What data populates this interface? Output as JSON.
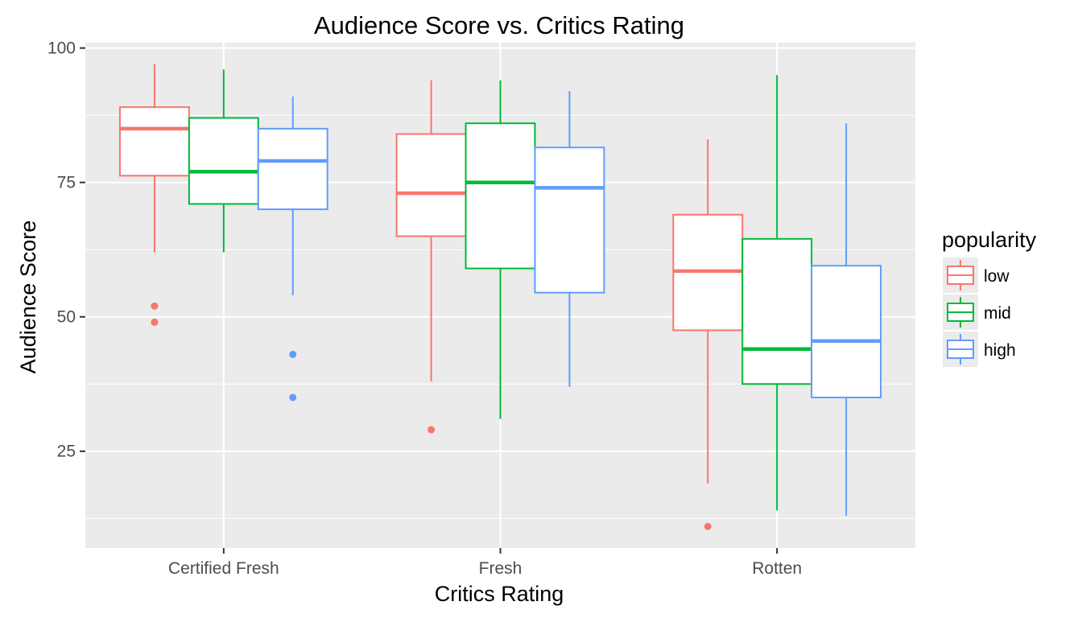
{
  "chart_data": {
    "type": "boxplot",
    "title": "Audience Score vs. Critics Rating",
    "xlabel": "Critics Rating",
    "ylabel": "Audience Score",
    "ylim": [
      7,
      101
    ],
    "yticks": [
      25,
      50,
      75,
      100
    ],
    "categories": [
      "Certified Fresh",
      "Fresh",
      "Rotten"
    ],
    "grid": true,
    "legend": {
      "title": "popularity",
      "position": "right"
    },
    "series": [
      {
        "name": "low",
        "color": "#F8766D",
        "boxes": [
          {
            "category": "Certified Fresh",
            "min": 62,
            "q1": 76.25,
            "median": 85,
            "q3": 89,
            "max": 97,
            "outliers": [
              52,
              49
            ]
          },
          {
            "category": "Fresh",
            "min": 38,
            "q1": 65,
            "median": 73,
            "q3": 84,
            "max": 94,
            "outliers": [
              29
            ]
          },
          {
            "category": "Rotten",
            "min": 19,
            "q1": 47.5,
            "median": 58.5,
            "q3": 69,
            "max": 83,
            "outliers": [
              11
            ]
          }
        ]
      },
      {
        "name": "mid",
        "color": "#00BA38",
        "boxes": [
          {
            "category": "Certified Fresh",
            "min": 62,
            "q1": 71,
            "median": 77,
            "q3": 87,
            "max": 96,
            "outliers": []
          },
          {
            "category": "Fresh",
            "min": 31,
            "q1": 59,
            "median": 75,
            "q3": 86,
            "max": 94,
            "outliers": []
          },
          {
            "category": "Rotten",
            "min": 14,
            "q1": 37.5,
            "median": 44,
            "q3": 64.5,
            "max": 95,
            "outliers": []
          }
        ]
      },
      {
        "name": "high",
        "color": "#619CFF",
        "boxes": [
          {
            "category": "Certified Fresh",
            "min": 54,
            "q1": 70,
            "median": 79,
            "q3": 85,
            "max": 91,
            "outliers": [
              43,
              35
            ]
          },
          {
            "category": "Fresh",
            "min": 37,
            "q1": 54.5,
            "median": 74,
            "q3": 81.5,
            "max": 92,
            "outliers": []
          },
          {
            "category": "Rotten",
            "min": 13,
            "q1": 35,
            "median": 45.5,
            "q3": 59.5,
            "max": 86,
            "outliers": []
          }
        ]
      }
    ]
  }
}
